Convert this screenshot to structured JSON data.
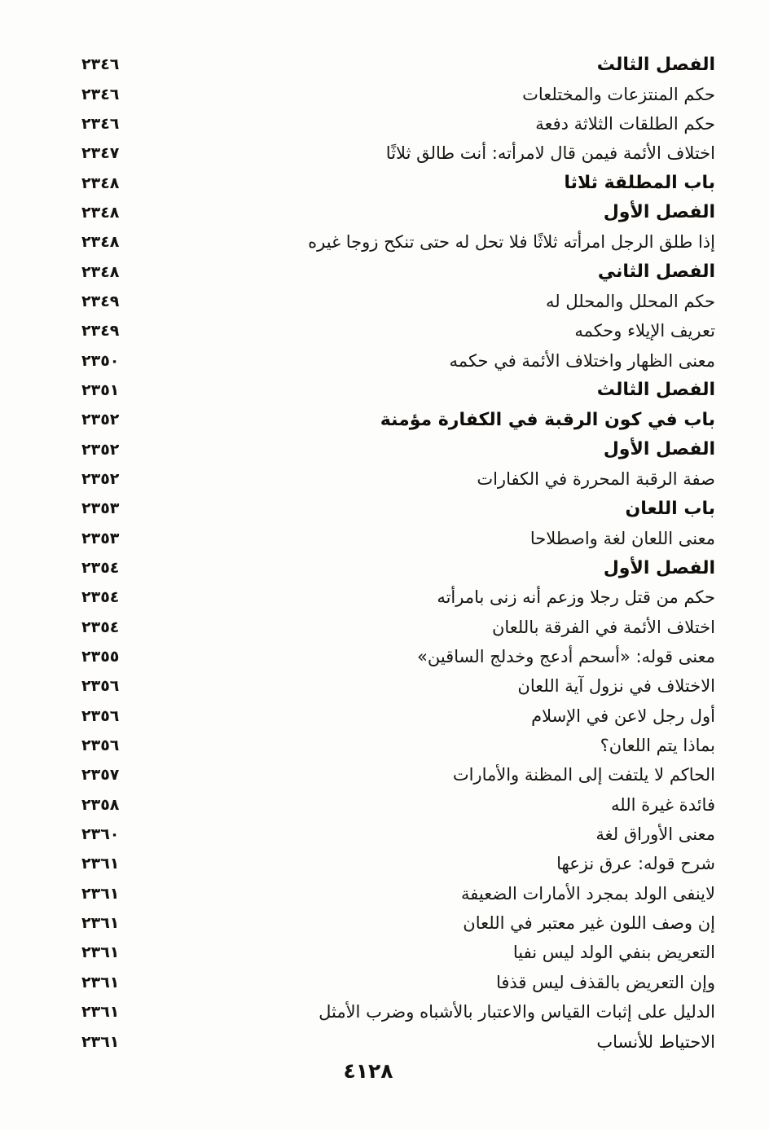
{
  "document": {
    "footer_page_number": "٤١٢٨",
    "entries": [
      {
        "title": "الفصل الثالث",
        "page": "٢٣٤٦",
        "heading": true
      },
      {
        "title": "حكم المنتزعات والمختلعات",
        "page": "٢٣٤٦",
        "heading": false
      },
      {
        "title": "حكم الطلقات الثلاثة دفعة",
        "page": "٢٣٤٦",
        "heading": false
      },
      {
        "title": "اختلاف الأئمة فيمن قال لامرأته: أنت طالق ثلاثًا",
        "page": "٢٣٤٧",
        "heading": false
      },
      {
        "title": "باب المطلقة ثلاثا",
        "page": "٢٣٤٨",
        "heading": true
      },
      {
        "title": "الفصل الأول",
        "page": "٢٣٤٨",
        "heading": true
      },
      {
        "title": "إذا طلق الرجل امرأته ثلاثًا فلا تحل له حتى تنكح زوجا غيره",
        "page": "٢٣٤٨",
        "heading": false
      },
      {
        "title": "الفصل الثاني",
        "page": "٢٣٤٨",
        "heading": true
      },
      {
        "title": "حكم المحلل والمحلل له",
        "page": "٢٣٤٩",
        "heading": false
      },
      {
        "title": "تعريف الإيلاء وحكمه",
        "page": "٢٣٤٩",
        "heading": false
      },
      {
        "title": "معنى الظهار واختلاف الأئمة في حكمه",
        "page": "٢٣٥٠",
        "heading": false
      },
      {
        "title": "الفصل الثالث",
        "page": "٢٣٥١",
        "heading": true
      },
      {
        "title": "باب في كون الرقبة في الكفارة مؤمنة",
        "page": "٢٣٥٢",
        "heading": true
      },
      {
        "title": "الفصل الأول",
        "page": "٢٣٥٢",
        "heading": true
      },
      {
        "title": "صفة الرقبة المحررة في الكفارات",
        "page": "٢٣٥٢",
        "heading": false
      },
      {
        "title": "باب اللعان",
        "page": "٢٣٥٣",
        "heading": true
      },
      {
        "title": "معنى اللعان لغة واصطلاحا",
        "page": "٢٣٥٣",
        "heading": false
      },
      {
        "title": "الفصل الأول",
        "page": "٢٣٥٤",
        "heading": true
      },
      {
        "title": "حكم من قتل رجلا وزعم أنه زنى بامرأته",
        "page": "٢٣٥٤",
        "heading": false
      },
      {
        "title": "اختلاف الأئمة في الفرقة باللعان",
        "page": "٢٣٥٤",
        "heading": false
      },
      {
        "title": "معنى قوله: «أسحم أدعج وخدلج الساقين»",
        "page": "٢٣٥٥",
        "heading": false
      },
      {
        "title": "الاختلاف في نزول آية اللعان",
        "page": "٢٣٥٦",
        "heading": false
      },
      {
        "title": "أول رجل لاعن في الإسلام",
        "page": "٢٣٥٦",
        "heading": false
      },
      {
        "title": "بماذا يتم اللعان؟",
        "page": "٢٣٥٦",
        "heading": false
      },
      {
        "title": "الحاكم لا يلتفت إلى المظنة والأمارات",
        "page": "٢٣٥٧",
        "heading": false
      },
      {
        "title": "فائدة غيرة الله",
        "page": "٢٣٥٨",
        "heading": false
      },
      {
        "title": "معنى الأوراق لغة",
        "page": "٢٣٦٠",
        "heading": false
      },
      {
        "title": "شرح قوله: عرق نزعها",
        "page": "٢٣٦١",
        "heading": false
      },
      {
        "title": "لاينفى الولد بمجرد الأمارات الضعيفة",
        "page": "٢٣٦١",
        "heading": false
      },
      {
        "title": "إن وصف اللون غير معتبر في اللعان",
        "page": "٢٣٦١",
        "heading": false
      },
      {
        "title": "التعريض بنفي الولد ليس نفيا",
        "page": "٢٣٦١",
        "heading": false
      },
      {
        "title": "وإن التعريض بالقذف ليس قذفا",
        "page": "٢٣٦١",
        "heading": false
      },
      {
        "title": "الدليل على إثبات القياس والاعتبار بالأشباه وضرب الأمثل",
        "page": "٢٣٦١",
        "heading": false
      },
      {
        "title": "الاحتياط للأنساب",
        "page": "٢٣٦١",
        "heading": false
      }
    ]
  }
}
